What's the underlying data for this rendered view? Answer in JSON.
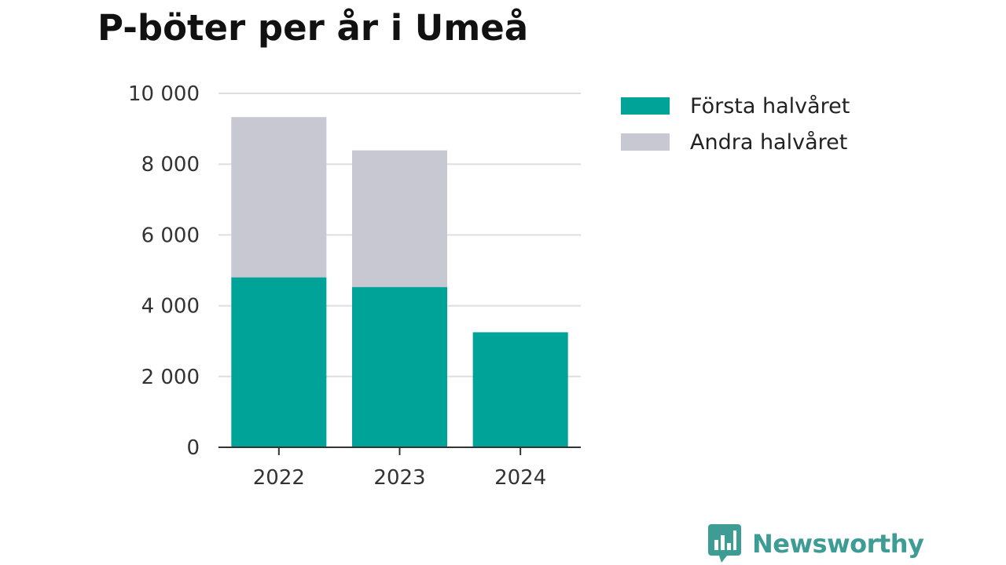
{
  "colors": {
    "first_half": "#00a398",
    "second_half": "#c8c8d3",
    "grid": "#dedee3",
    "axis": "#333333",
    "brand": "#3d9c94"
  },
  "brand": {
    "name": "Newsworthy",
    "icon": "bar-chart-speech-bubble-icon"
  },
  "chart_data": {
    "type": "bar",
    "stacked": true,
    "title": "P-böter per år i Umeå",
    "xlabel": "",
    "ylabel": "",
    "categories": [
      "2022",
      "2023",
      "2024"
    ],
    "series": [
      {
        "name": "Första halvåret",
        "values": [
          4800,
          4530,
          3250
        ]
      },
      {
        "name": "Andra halvåret",
        "values": [
          4530,
          3860,
          0
        ]
      }
    ],
    "ylim": [
      0,
      10000
    ],
    "yticks": [
      0,
      2000,
      4000,
      6000,
      8000,
      10000
    ],
    "ytick_labels": [
      "0",
      "2 000",
      "4 000",
      "6 000",
      "8 000",
      "10 000"
    ],
    "grid": true,
    "legend_position": "top-right"
  }
}
